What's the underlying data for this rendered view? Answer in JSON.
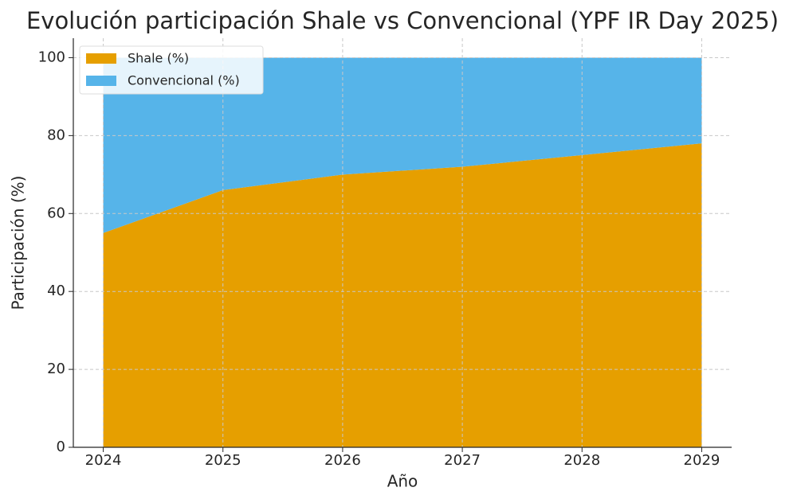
{
  "chart_data": {
    "type": "stacked-area",
    "title": "Evolución participación Shale vs Convencional (YPF IR Day 2025)",
    "x_label": "Año",
    "y_label": "Participación (%)",
    "x": [
      2024,
      2025,
      2026,
      2027,
      2028,
      2029
    ],
    "series": [
      {
        "name": "Shale (%)",
        "color": "#e69f00",
        "values": [
          55,
          66,
          70,
          72,
          75,
          78
        ]
      },
      {
        "name": "Convencional (%)",
        "color": "#56b4e9",
        "values": [
          45,
          34,
          30,
          28,
          25,
          22
        ]
      }
    ],
    "xlim": [
      2023.75,
      2029.25
    ],
    "xticks": [
      2024,
      2025,
      2026,
      2027,
      2028,
      2029
    ],
    "ylim": [
      0,
      105
    ],
    "yticks": [
      0,
      20,
      40,
      60,
      80,
      100
    ],
    "grid": true,
    "legend": "upper-left"
  }
}
